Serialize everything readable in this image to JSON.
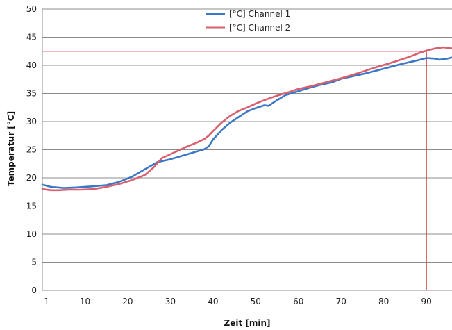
{
  "chart_data": {
    "type": "line",
    "title": "",
    "xlabel": "Zeit [min]",
    "ylabel": "Temperatur [°C]",
    "xlim": [
      0,
      96
    ],
    "ylim": [
      0,
      50
    ],
    "x_ticks": [
      1,
      10,
      20,
      30,
      40,
      50,
      60,
      70,
      80,
      90
    ],
    "y_ticks": [
      0,
      5,
      10,
      15,
      20,
      25,
      30,
      35,
      40,
      45,
      50
    ],
    "grid": "horizontal",
    "legend_position": "top-center",
    "series": [
      {
        "name": "[°C] Channel 1",
        "color": "#3a77c6",
        "x": [
          0,
          2,
          5,
          8,
          12,
          15,
          18,
          21,
          24,
          27,
          30,
          34,
          38,
          39,
          40,
          42,
          44,
          46,
          48,
          50,
          52,
          53,
          55,
          57,
          60,
          63,
          65,
          68,
          70,
          73,
          76,
          80,
          84,
          88,
          90,
          92,
          93,
          95,
          96
        ],
        "y": [
          18.8,
          18.4,
          18.2,
          18.3,
          18.5,
          18.7,
          19.3,
          20.2,
          21.5,
          22.8,
          23.3,
          24.2,
          25.1,
          25.6,
          26.8,
          28.5,
          29.8,
          30.8,
          31.8,
          32.4,
          32.9,
          32.8,
          33.8,
          34.7,
          35.4,
          36.1,
          36.5,
          37.0,
          37.6,
          38.1,
          38.6,
          39.4,
          40.2,
          40.9,
          41.3,
          41.2,
          41.0,
          41.2,
          41.4
        ]
      },
      {
        "name": "[°C] Channel 2",
        "color": "#d95f6e",
        "x": [
          0,
          2,
          4,
          6,
          9,
          12,
          15,
          18,
          21,
          24,
          26,
          28,
          30,
          32,
          34,
          36,
          38,
          39,
          40,
          42,
          44,
          46,
          48,
          50,
          52,
          55,
          58,
          60,
          63,
          66,
          70,
          74,
          78,
          82,
          86,
          88,
          90,
          92,
          94,
          95,
          96
        ],
        "y": [
          18.0,
          17.8,
          17.8,
          17.9,
          17.9,
          18.0,
          18.4,
          18.9,
          19.6,
          20.5,
          21.8,
          23.5,
          24.2,
          24.9,
          25.6,
          26.2,
          26.9,
          27.5,
          28.3,
          29.8,
          31.0,
          31.9,
          32.5,
          33.2,
          33.8,
          34.6,
          35.3,
          35.8,
          36.3,
          36.9,
          37.7,
          38.6,
          39.6,
          40.5,
          41.5,
          42.1,
          42.6,
          43.0,
          43.2,
          43.1,
          43.0
        ]
      }
    ],
    "reference_lines": [
      {
        "orientation": "horizontal",
        "y": 42.5,
        "x_start": 0,
        "x_end": 90,
        "color": "#d23b3b"
      },
      {
        "orientation": "vertical",
        "x": 90,
        "y_start": 0,
        "y_end": 42.5,
        "color": "#d23b3b"
      }
    ]
  }
}
